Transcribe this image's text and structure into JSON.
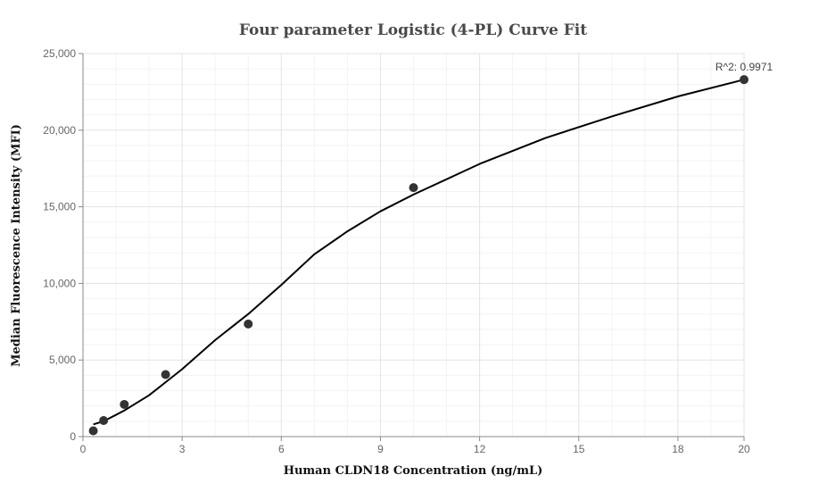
{
  "chart_data": {
    "type": "scatter",
    "title": "Four parameter Logistic (4-PL) Curve Fit",
    "xlabel": "Human CLDN18 Concentration (ng/mL)",
    "ylabel": "Median Fluorescence Intensity (MFI)",
    "xlim": [
      0,
      20
    ],
    "ylim": [
      0,
      25000
    ],
    "x_ticks": [
      0,
      3,
      6,
      9,
      12,
      15,
      18,
      20
    ],
    "x_tick_labels": [
      "0",
      "3",
      "6",
      "9",
      "12",
      "15",
      "18",
      "20"
    ],
    "y_ticks": [
      0,
      5000,
      10000,
      15000,
      20000,
      25000
    ],
    "y_tick_labels": [
      "0",
      "5,000",
      "10,000",
      "15,000",
      "20,000",
      "25,000"
    ],
    "grid": true,
    "points": [
      {
        "x": 0.3125,
        "y": 380
      },
      {
        "x": 0.625,
        "y": 1050
      },
      {
        "x": 1.25,
        "y": 2100
      },
      {
        "x": 2.5,
        "y": 4050
      },
      {
        "x": 5,
        "y": 7350
      },
      {
        "x": 10,
        "y": 16250
      },
      {
        "x": 20,
        "y": 23300
      }
    ],
    "fit_curve": [
      [
        0.3125,
        800
      ],
      [
        0.625,
        1000
      ],
      [
        1.25,
        1700
      ],
      [
        2,
        2700
      ],
      [
        2.5,
        3550
      ],
      [
        3,
        4400
      ],
      [
        4,
        6300
      ],
      [
        5,
        8000
      ],
      [
        6,
        9900
      ],
      [
        7,
        11900
      ],
      [
        8,
        13400
      ],
      [
        9,
        14700
      ],
      [
        10,
        15800
      ],
      [
        12,
        17800
      ],
      [
        14,
        19500
      ],
      [
        16,
        20900
      ],
      [
        18,
        22200
      ],
      [
        20,
        23300
      ]
    ],
    "annotation": "R^2: 0.9971",
    "colors": {
      "points": "#333333",
      "curve": "#000000",
      "grid_major": "#e3e3e3",
      "grid_minor": "#f3f3f3"
    }
  }
}
